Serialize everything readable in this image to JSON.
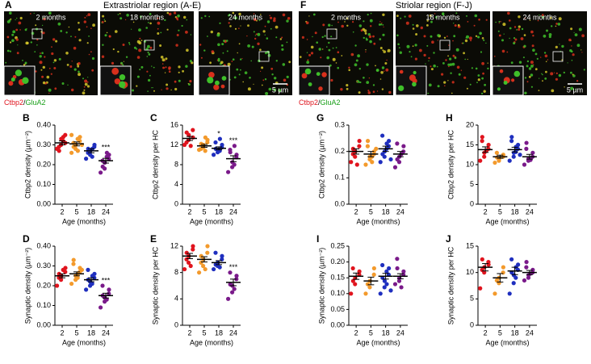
{
  "images": {
    "extrastriolar": {
      "label": "A",
      "title": "Extrastriolar region (A-E)",
      "panels": [
        "2 months",
        "18 months",
        "24 months"
      ],
      "scale": "5 µm"
    },
    "striolar": {
      "label": "F",
      "title": "Striolar region (F-J)",
      "panels": [
        "2 months",
        "18 months",
        "24 months"
      ],
      "scale": "5 µm"
    },
    "stain": {
      "red": "Ctbp2",
      "sep": "/",
      "green": "GluA2"
    }
  },
  "chart_data": [
    {
      "type": "dot",
      "label": "B",
      "ylabel": "Ctbp2 density (µm⁻²)",
      "xlabel": "Age (months)",
      "categories": [
        "2",
        "5",
        "18",
        "24"
      ],
      "colors": [
        "#e0141e",
        "#f39a2c",
        "#1f2fbf",
        "#7a1a8a"
      ],
      "groups": [
        [
          0.28,
          0.3,
          0.33,
          0.35,
          0.31,
          0.29,
          0.27,
          0.32,
          0.34
        ],
        [
          0.26,
          0.28,
          0.3,
          0.32,
          0.34,
          0.31,
          0.29,
          0.33,
          0.27,
          0.3,
          0.35
        ],
        [
          0.23,
          0.25,
          0.27,
          0.29,
          0.3,
          0.26,
          0.28,
          0.24,
          0.28
        ],
        [
          0.16,
          0.18,
          0.21,
          0.23,
          0.25,
          0.22,
          0.19,
          0.24,
          0.26
        ]
      ],
      "means": [
        0.31,
        0.305,
        0.27,
        0.22
      ],
      "sem": [
        0.01,
        0.01,
        0.01,
        0.012
      ],
      "significance": [
        null,
        null,
        null,
        "***"
      ],
      "ylim": [
        0,
        0.4
      ],
      "yticks": [
        {
          "value": 0,
          "label": "0.00"
        },
        {
          "value": 0.1,
          "label": "0.10"
        },
        {
          "value": 0.2,
          "label": "0.20"
        },
        {
          "value": 0.3,
          "label": "0.30"
        },
        {
          "value": 0.4,
          "label": "0.40"
        }
      ]
    },
    {
      "type": "dot",
      "label": "C",
      "ylabel": "Ctbp2 density per HC",
      "xlabel": "Age (months)",
      "categories": [
        "2",
        "5",
        "18",
        "24"
      ],
      "colors": [
        "#e0141e",
        "#f39a2c",
        "#1f2fbf",
        "#7a1a8a"
      ],
      "groups": [
        [
          12,
          13,
          14,
          15,
          13.5,
          12.5,
          14.5,
          11.8
        ],
        [
          11,
          11.5,
          12,
          12.5,
          13,
          11.2,
          12.2,
          10.8,
          13.5
        ],
        [
          10,
          10.5,
          11,
          11.5,
          12,
          12.5,
          11.2,
          10.8,
          13.2
        ],
        [
          6.5,
          7.5,
          8.5,
          9.5,
          10,
          11,
          10.5,
          8,
          11.8
        ]
      ],
      "means": [
        13.3,
        11.8,
        11.3,
        9.2
      ],
      "sem": [
        0.4,
        0.3,
        0.3,
        0.6
      ],
      "significance": [
        null,
        null,
        "*",
        "***"
      ],
      "ylim": [
        0,
        16
      ],
      "yticks": [
        0,
        4,
        8,
        12,
        16
      ]
    },
    {
      "type": "dot",
      "label": "D",
      "ylabel": "Synaptic density (µm⁻²)",
      "xlabel": "Age (months)",
      "categories": [
        "2",
        "5",
        "18",
        "24"
      ],
      "colors": [
        "#e0141e",
        "#f39a2c",
        "#1f2fbf",
        "#7a1a8a"
      ],
      "groups": [
        [
          0.2,
          0.23,
          0.25,
          0.27,
          0.29,
          0.24,
          0.26,
          0.28
        ],
        [
          0.21,
          0.23,
          0.25,
          0.27,
          0.29,
          0.31,
          0.33,
          0.24,
          0.26,
          0.28
        ],
        [
          0.18,
          0.2,
          0.22,
          0.24,
          0.26,
          0.28,
          0.23,
          0.21,
          0.25
        ],
        [
          0.09,
          0.12,
          0.14,
          0.16,
          0.18,
          0.2,
          0.15,
          0.13
        ]
      ],
      "means": [
        0.25,
        0.26,
        0.23,
        0.15
      ],
      "sem": [
        0.01,
        0.01,
        0.01,
        0.012
      ],
      "significance": [
        null,
        null,
        null,
        "***"
      ],
      "ylim": [
        0,
        0.4
      ],
      "yticks": [
        {
          "value": 0,
          "label": "0.00"
        },
        {
          "value": 0.1,
          "label": "0.10"
        },
        {
          "value": 0.2,
          "label": "0.20"
        },
        {
          "value": 0.3,
          "label": "0.30"
        },
        {
          "value": 0.4,
          "label": "0.40"
        }
      ]
    },
    {
      "type": "dot",
      "label": "E",
      "ylabel": "Synaptic density per HC",
      "xlabel": "Age (months)",
      "categories": [
        "2",
        "5",
        "18",
        "24"
      ],
      "colors": [
        "#e0141e",
        "#f39a2c",
        "#1f2fbf",
        "#7a1a8a"
      ],
      "groups": [
        [
          8.5,
          9.5,
          10.5,
          11.5,
          12,
          10,
          11,
          9
        ],
        [
          8,
          9,
          10,
          11,
          12,
          9.5,
          10.5,
          8.5
        ],
        [
          8.5,
          9,
          9.5,
          10,
          10.5,
          11,
          9.2,
          8.8
        ],
        [
          4,
          5,
          6,
          7,
          7.5,
          8,
          6.2,
          5.5
        ]
      ],
      "means": [
        10.5,
        10,
        9.5,
        6.5
      ],
      "sem": [
        0.4,
        0.4,
        0.3,
        0.5
      ],
      "significance": [
        null,
        null,
        null,
        "***"
      ],
      "ylim": [
        0,
        12
      ],
      "yticks": [
        0,
        4,
        8,
        12
      ]
    },
    {
      "type": "dot",
      "label": "G",
      "ylabel": "Ctbp2 density (µm⁻²)",
      "xlabel": "Age (months)",
      "categories": [
        "2",
        "5",
        "18",
        "24"
      ],
      "colors": [
        "#e0141e",
        "#f39a2c",
        "#1f2fbf",
        "#7a1a8a"
      ],
      "groups": [
        [
          0.16,
          0.18,
          0.2,
          0.22,
          0.24,
          0.19,
          0.21,
          0.15
        ],
        [
          0.15,
          0.17,
          0.18,
          0.19,
          0.2,
          0.22,
          0.24,
          0.18,
          0.16,
          0.21
        ],
        [
          0.16,
          0.18,
          0.2,
          0.22,
          0.24,
          0.26,
          0.19,
          0.21,
          0.23,
          0.17
        ],
        [
          0.14,
          0.16,
          0.18,
          0.2,
          0.22,
          0.23,
          0.17,
          0.19
        ]
      ],
      "means": [
        0.2,
        0.19,
        0.21,
        0.19
      ],
      "sem": [
        0.01,
        0.01,
        0.01,
        0.01
      ],
      "significance": [
        null,
        null,
        null,
        null
      ],
      "ylim": [
        0,
        0.3
      ],
      "yticks": [
        {
          "value": 0,
          "label": "0.0"
        },
        {
          "value": 0.1,
          "label": "0.1"
        },
        {
          "value": 0.2,
          "label": "0.2"
        },
        {
          "value": 0.3,
          "label": "0.3"
        }
      ]
    },
    {
      "type": "dot",
      "label": "H",
      "ylabel": "Ctbp2 density per HC",
      "xlabel": "Age (months)",
      "categories": [
        "2",
        "5",
        "18",
        "24"
      ],
      "colors": [
        "#e0141e",
        "#f39a2c",
        "#1f2fbf",
        "#7a1a8a"
      ],
      "groups": [
        [
          11,
          12,
          13,
          14,
          15,
          16,
          17,
          13.5
        ],
        [
          10.5,
          11,
          11.5,
          12,
          12.5,
          13,
          11.8
        ],
        [
          11,
          12,
          13,
          14,
          15,
          16,
          17,
          13.2,
          14.5,
          12.5
        ],
        [
          10,
          11,
          11.5,
          12,
          13,
          14,
          15.5,
          11.2
        ]
      ],
      "means": [
        13.8,
        12,
        13.8,
        12
      ],
      "sem": [
        0.7,
        0.4,
        0.6,
        0.6
      ],
      "significance": [
        null,
        null,
        null,
        null
      ],
      "ylim": [
        0,
        20
      ],
      "yticks": [
        0,
        5,
        10,
        15,
        20
      ]
    },
    {
      "type": "dot",
      "label": "I",
      "ylabel": "Synaptic density (µm⁻²)",
      "xlabel": "Age (months)",
      "categories": [
        "2",
        "5",
        "18",
        "24"
      ],
      "colors": [
        "#e0141e",
        "#f39a2c",
        "#1f2fbf",
        "#7a1a8a"
      ],
      "groups": [
        [
          0.1,
          0.13,
          0.15,
          0.16,
          0.17,
          0.18,
          0.14
        ],
        [
          0.1,
          0.12,
          0.14,
          0.16,
          0.18,
          0.13
        ],
        [
          0.1,
          0.12,
          0.14,
          0.16,
          0.18,
          0.19,
          0.15,
          0.17,
          0.13,
          0.11
        ],
        [
          0.13,
          0.14,
          0.15,
          0.16,
          0.17,
          0.21,
          0.18,
          0.12
        ]
      ],
      "means": [
        0.155,
        0.14,
        0.155,
        0.155
      ],
      "sem": [
        0.01,
        0.012,
        0.009,
        0.008
      ],
      "significance": [
        null,
        null,
        null,
        null
      ],
      "ylim": [
        0,
        0.25
      ],
      "yticks": [
        {
          "value": 0,
          "label": "0.00"
        },
        {
          "value": 0.05,
          "label": "0.05"
        },
        {
          "value": 0.1,
          "label": "0.10"
        },
        {
          "value": 0.15,
          "label": "0.15"
        },
        {
          "value": 0.2,
          "label": "0.20"
        },
        {
          "value": 0.25,
          "label": "0.25"
        }
      ]
    },
    {
      "type": "dot",
      "label": "J",
      "ylabel": "Synaptic density per HC",
      "xlabel": "Age (months)",
      "categories": [
        "2",
        "5",
        "18",
        "24"
      ],
      "colors": [
        "#e0141e",
        "#f39a2c",
        "#1f2fbf",
        "#7a1a8a"
      ],
      "groups": [
        [
          7,
          10,
          11,
          12,
          11.5,
          10.5,
          12.5
        ],
        [
          6,
          8,
          9,
          10,
          11,
          8.5
        ],
        [
          6,
          8,
          9.5,
          10.5,
          11.5,
          12.5,
          10,
          9,
          11
        ],
        [
          8.5,
          9,
          9.5,
          10,
          10.5,
          11,
          12,
          9.8
        ]
      ],
      "means": [
        11,
        9,
        10.3,
        10
      ],
      "sem": [
        0.7,
        0.8,
        0.7,
        0.4
      ],
      "significance": [
        null,
        null,
        null,
        null
      ],
      "ylim": [
        0,
        15
      ],
      "yticks": [
        0,
        5,
        10,
        15
      ]
    }
  ]
}
